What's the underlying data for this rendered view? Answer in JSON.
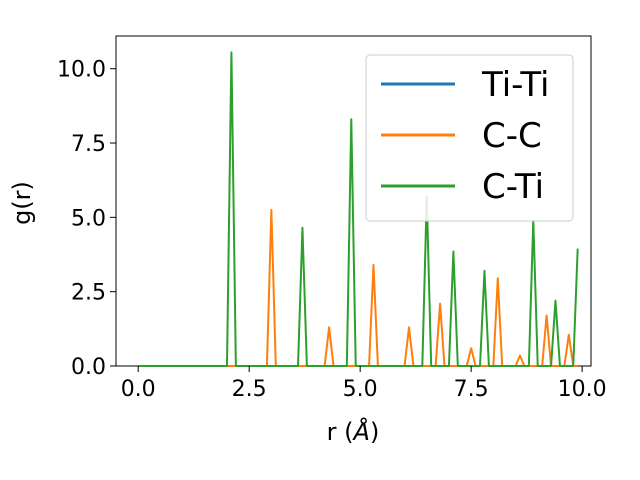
{
  "chart_data": {
    "type": "line",
    "title": "",
    "xlabel": "r (",
    "xlabel_symbol": "Å",
    "xlabel_close": ")",
    "ylabel": "g(r)",
    "xlim": [
      -0.5,
      10.2
    ],
    "ylim": [
      0,
      11.1
    ],
    "xticks": [
      0.0,
      2.5,
      5.0,
      7.5,
      10.0
    ],
    "yticks": [
      0.0,
      2.5,
      5.0,
      7.5,
      10.0
    ],
    "xtick_labels": [
      "0.0",
      "2.5",
      "5.0",
      "7.5",
      "10.0"
    ],
    "ytick_labels": [
      "0.0",
      "2.5",
      "5.0",
      "7.5",
      "10.0"
    ],
    "grid": false,
    "legend_position": "top-right",
    "series": [
      {
        "name": "Ti-Ti",
        "color": "#1f77b4",
        "x": [
          0.0,
          9.9
        ],
        "y": [
          0.0,
          0.0
        ]
      },
      {
        "name": "C-C",
        "color": "#ff7f0e",
        "x": [
          0.0,
          2.9,
          3.0,
          3.1,
          4.2,
          4.3,
          4.4,
          5.2,
          5.3,
          5.4,
          6.0,
          6.1,
          6.2,
          6.7,
          6.8,
          6.9,
          7.4,
          7.5,
          7.6,
          8.0,
          8.1,
          8.2,
          8.5,
          8.6,
          8.7,
          9.1,
          9.2,
          9.3,
          9.6,
          9.7,
          9.8,
          9.9
        ],
        "y": [
          0.0,
          0.0,
          5.25,
          0.0,
          0.0,
          1.3,
          0.0,
          0.0,
          3.4,
          0.0,
          0.0,
          1.3,
          0.0,
          0.0,
          2.1,
          0.0,
          0.0,
          0.6,
          0.0,
          0.0,
          2.95,
          0.0,
          0.0,
          0.35,
          0.0,
          0.0,
          1.7,
          0.0,
          0.0,
          1.05,
          0.0,
          0.0
        ]
      },
      {
        "name": "C-Ti",
        "color": "#2ca02c",
        "x": [
          0.0,
          2.0,
          2.1,
          2.2,
          3.6,
          3.7,
          3.8,
          4.7,
          4.8,
          4.9,
          6.4,
          6.5,
          6.6,
          7.0,
          7.1,
          7.2,
          7.7,
          7.8,
          7.9,
          8.8,
          8.9,
          9.0,
          9.3,
          9.4,
          9.5,
          9.8,
          9.9
        ],
        "y": [
          0.0,
          0.0,
          10.55,
          0.0,
          0.0,
          4.65,
          0.0,
          0.0,
          8.3,
          0.0,
          0.0,
          5.7,
          0.0,
          0.0,
          3.85,
          0.0,
          0.0,
          3.2,
          0.0,
          0.0,
          4.9,
          0.0,
          0.0,
          2.2,
          0.0,
          0.0,
          3.95
        ]
      }
    ]
  }
}
